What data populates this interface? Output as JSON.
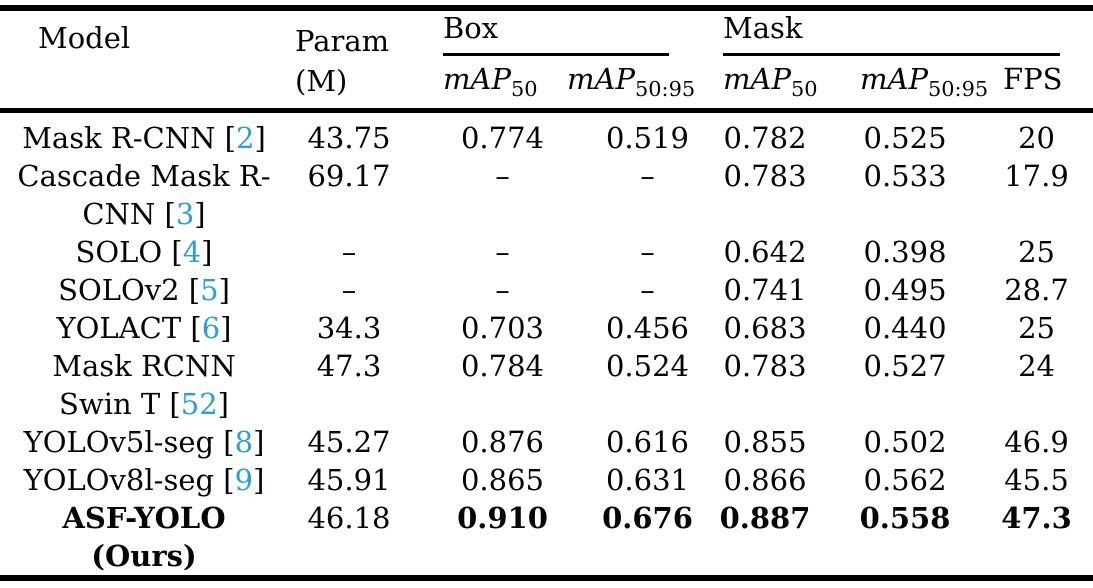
{
  "page": {
    "background": "#ffffff"
  },
  "table": {
    "colors": {
      "citation_blue": "#2d9fd8",
      "text": "#050505",
      "rule": "#000000"
    },
    "header": {
      "model": "Model",
      "param_line1": "Param",
      "param_line2": "(M)",
      "box_group": "Box",
      "mask_group": "Mask",
      "map_label": "mAP",
      "map50_sub": "50",
      "map5095_sub": "50:95",
      "fps": "FPS"
    },
    "rows": [
      {
        "model_pre": "Mask R-CNN [",
        "model_cite": "2",
        "model_post": "]",
        "param": "43.75",
        "box_map50": "0.774",
        "box_map5095": "0.519",
        "mask_map50": "0.782",
        "mask_map5095": "0.525",
        "fps": "20"
      },
      {
        "model_line1": "Cascade Mask R-",
        "model_line2_pre": "CNN [",
        "model_cite": "3",
        "model_line2_post": "]",
        "param": "69.17",
        "box_map50": "–",
        "box_map5095": "–",
        "mask_map50": "0.783",
        "mask_map5095": "0.533",
        "fps": "17.9"
      },
      {
        "model_pre": "SOLO [",
        "model_cite": "4",
        "model_post": "]",
        "param": "–",
        "box_map50": "–",
        "box_map5095": "–",
        "mask_map50": "0.642",
        "mask_map5095": "0.398",
        "fps": "25"
      },
      {
        "model_pre": "SOLOv2 [",
        "model_cite": "5",
        "model_post": "]",
        "param": "–",
        "box_map50": "–",
        "box_map5095": "–",
        "mask_map50": "0.741",
        "mask_map5095": "0.495",
        "fps": "28.7"
      },
      {
        "model_pre": "YOLACT [",
        "model_cite": "6",
        "model_post": "]",
        "param": "34.3",
        "box_map50": "0.703",
        "box_map5095": "0.456",
        "mask_map50": "0.683",
        "mask_map5095": "0.440",
        "fps": "25"
      },
      {
        "model_line1": "Mask RCNN",
        "model_line2_pre": "Swin T [",
        "model_cite": "52",
        "model_line2_post": "]",
        "param": "47.3",
        "box_map50": "0.784",
        "box_map5095": "0.524",
        "mask_map50": "0.783",
        "mask_map5095": "0.527",
        "fps": "24"
      },
      {
        "model_pre": "YOLOv5l-seg [",
        "model_cite": "8",
        "model_post": "]",
        "param": "45.27",
        "box_map50": "0.876",
        "box_map5095": "0.616",
        "mask_map50": "0.855",
        "mask_map5095": "0.502",
        "fps": "46.9"
      },
      {
        "model_pre": "YOLOv8l-seg [",
        "model_cite": "9",
        "model_post": "]",
        "param": "45.91",
        "box_map50": "0.865",
        "box_map5095": "0.631",
        "mask_map50": "0.866",
        "mask_map5095": "0.562",
        "fps": "45.5"
      },
      {
        "model_line1": "ASF-YOLO",
        "model_line2": "(Ours)",
        "param": "46.18",
        "box_map50": "0.910",
        "box_map5095": "0.676",
        "mask_map50": "0.887",
        "mask_map5095": "0.558",
        "fps": "47.3"
      }
    ]
  }
}
